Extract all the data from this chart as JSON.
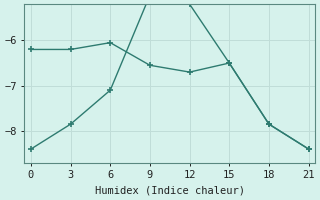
{
  "line1_x": [
    0,
    3,
    6,
    9,
    12,
    15,
    18,
    21
  ],
  "line1_y": [
    -6.2,
    -6.2,
    -6.05,
    -6.55,
    -6.7,
    -6.5,
    -7.85,
    -8.4
  ],
  "line2_x": [
    0,
    3,
    6,
    9,
    12,
    15,
    18,
    21
  ],
  "line2_y": [
    -8.4,
    -7.85,
    -7.1,
    -5.0,
    -5.2,
    -6.5,
    -7.85,
    -8.4
  ],
  "line_color": "#2e7b70",
  "bg_color": "#d6f2ec",
  "grid_color": "#c0ddd8",
  "xlabel": "Humidex (Indice chaleur)",
  "xlim": [
    -0.5,
    21.5
  ],
  "ylim": [
    -8.7,
    -5.2
  ],
  "xticks": [
    0,
    3,
    6,
    9,
    12,
    15,
    18,
    21
  ],
  "yticks": [
    -8,
    -7,
    -6
  ],
  "marker": "+"
}
